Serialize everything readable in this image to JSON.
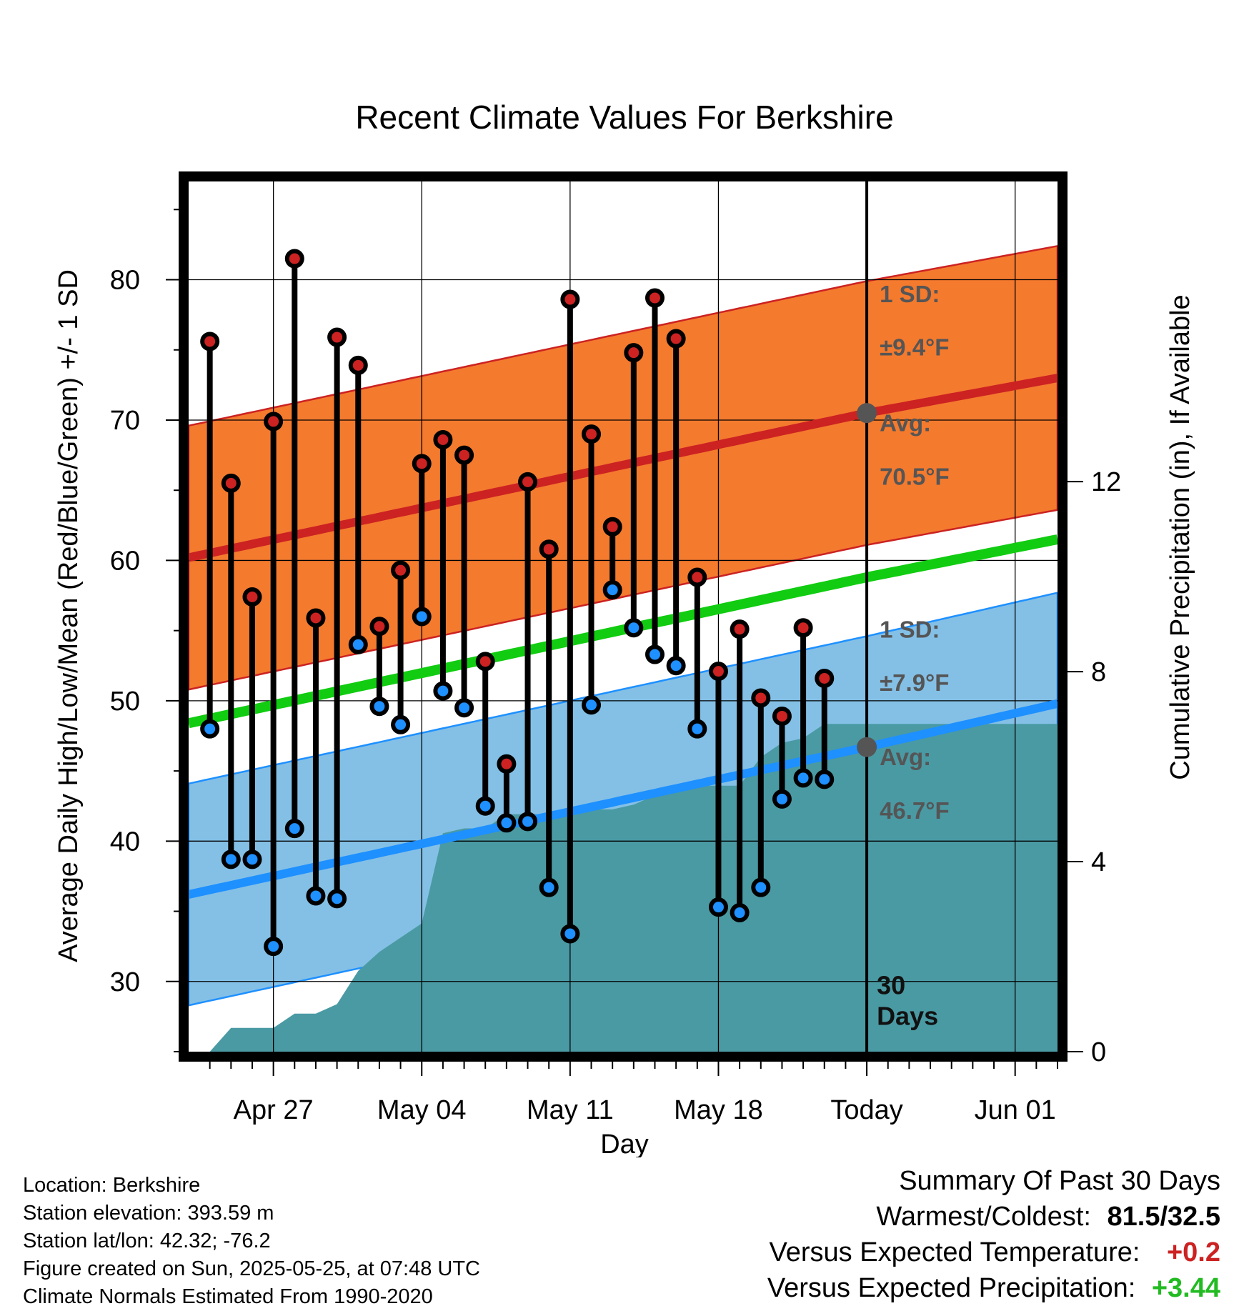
{
  "chart_data": {
    "type": "line",
    "title": "Recent Climate Values For Berkshire",
    "xlabel": "Day",
    "ylabel": "Average Daily High/Low/Mean (Red/Blue/Green) +/- 1 SD",
    "y2label": "Cumulative Precipitation (in), If Available",
    "ylim": [
      25,
      87
    ],
    "y2lim": [
      0,
      18.32
    ],
    "yticks": [
      30,
      40,
      50,
      60,
      70,
      80
    ],
    "y2ticks": [
      0,
      4,
      8,
      12
    ],
    "xlim": [
      "2025-04-23",
      "2025-06-03"
    ],
    "xticks": [
      {
        "date": "2025-04-27",
        "label": "Apr 27"
      },
      {
        "date": "2025-05-04",
        "label": "May 04"
      },
      {
        "date": "2025-05-11",
        "label": "May 11"
      },
      {
        "date": "2025-05-18",
        "label": "May 18"
      },
      {
        "date": "2025-05-25",
        "label": "Today"
      },
      {
        "date": "2025-06-01",
        "label": "Jun 01"
      }
    ],
    "today": "2025-05-25",
    "period_label": [
      "30",
      "Days"
    ],
    "grid": true,
    "colors": {
      "high": "#cc2222",
      "high_band": "#f47a2e",
      "low": "#1e90ff",
      "low_band": "#84c0e6",
      "mean": "#11cc11",
      "precip": "#4a9aa4"
    },
    "normals": {
      "dates": [
        "2025-04-23",
        "2025-05-25",
        "2025-06-03"
      ],
      "high_avg": [
        60.2,
        70.5,
        73.0
      ],
      "high_sd": 9.4,
      "low_avg": [
        36.2,
        46.7,
        49.8
      ],
      "low_sd": 7.9,
      "mean_avg": [
        48.4,
        58.8,
        61.5
      ]
    },
    "annotations": {
      "high_sd_label": "1 SD:",
      "high_sd_value": "±9.4°F",
      "high_avg_label": "Avg:",
      "high_avg_value": "70.5°F",
      "low_sd_label": "1 SD:",
      "low_sd_value": "±7.9°F",
      "low_avg_label": "Avg:",
      "low_avg_value": "46.7°F"
    },
    "series": [
      {
        "name": "High",
        "dates": [
          "2025-04-24",
          "2025-04-25",
          "2025-04-26",
          "2025-04-27",
          "2025-04-28",
          "2025-04-29",
          "2025-04-30",
          "2025-05-01",
          "2025-05-02",
          "2025-05-03",
          "2025-05-04",
          "2025-05-05",
          "2025-05-06",
          "2025-05-07",
          "2025-05-08",
          "2025-05-09",
          "2025-05-10",
          "2025-05-11",
          "2025-05-12",
          "2025-05-13",
          "2025-05-14",
          "2025-05-15",
          "2025-05-16",
          "2025-05-17",
          "2025-05-18",
          "2025-05-19",
          "2025-05-20",
          "2025-05-21",
          "2025-05-22",
          "2025-05-23"
        ],
        "values": [
          75.6,
          65.5,
          57.4,
          69.9,
          81.5,
          55.9,
          75.9,
          73.9,
          55.3,
          59.3,
          66.9,
          68.6,
          67.5,
          52.8,
          45.5,
          65.6,
          60.8,
          78.6,
          69.0,
          62.4,
          74.8,
          78.7,
          75.8,
          58.8,
          52.1,
          55.1,
          50.2,
          48.9,
          55.2,
          51.6
        ]
      },
      {
        "name": "Low",
        "dates": [
          "2025-04-24",
          "2025-04-25",
          "2025-04-26",
          "2025-04-27",
          "2025-04-28",
          "2025-04-29",
          "2025-04-30",
          "2025-05-01",
          "2025-05-02",
          "2025-05-03",
          "2025-05-04",
          "2025-05-05",
          "2025-05-06",
          "2025-05-07",
          "2025-05-08",
          "2025-05-09",
          "2025-05-10",
          "2025-05-11",
          "2025-05-12",
          "2025-05-13",
          "2025-05-14",
          "2025-05-15",
          "2025-05-16",
          "2025-05-17",
          "2025-05-18",
          "2025-05-19",
          "2025-05-20",
          "2025-05-21",
          "2025-05-22",
          "2025-05-23"
        ],
        "values": [
          48.0,
          38.7,
          38.7,
          32.5,
          40.9,
          36.1,
          35.9,
          54.0,
          49.6,
          48.3,
          56.0,
          50.7,
          49.5,
          42.5,
          41.3,
          41.4,
          36.7,
          33.4,
          49.7,
          57.9,
          55.2,
          53.3,
          52.5,
          48.0,
          35.3,
          34.9,
          36.7,
          43.0,
          44.5,
          44.4
        ]
      },
      {
        "name": "Cumulative Precipitation",
        "dates": [
          "2025-04-24",
          "2025-04-25",
          "2025-04-26",
          "2025-04-27",
          "2025-04-28",
          "2025-04-29",
          "2025-04-30",
          "2025-05-01",
          "2025-05-02",
          "2025-05-03",
          "2025-05-04",
          "2025-05-05",
          "2025-05-06",
          "2025-05-07",
          "2025-05-08",
          "2025-05-09",
          "2025-05-10",
          "2025-05-11",
          "2025-05-12",
          "2025-05-13",
          "2025-05-14",
          "2025-05-15",
          "2025-05-16",
          "2025-05-17",
          "2025-05-18",
          "2025-05-19",
          "2025-05-20",
          "2025-05-21",
          "2025-05-22",
          "2025-05-23",
          "2025-05-24",
          "2025-05-25",
          "2025-06-03"
        ],
        "values": [
          0.0,
          0.5,
          0.5,
          0.5,
          0.8,
          0.8,
          1.0,
          1.7,
          2.1,
          2.4,
          2.7,
          4.6,
          4.7,
          4.7,
          5.0,
          5.0,
          5.0,
          5.0,
          5.1,
          5.1,
          5.2,
          5.4,
          5.6,
          5.6,
          5.6,
          5.6,
          6.2,
          6.5,
          6.6,
          6.9,
          6.9,
          6.9,
          6.9
        ]
      }
    ]
  },
  "info": {
    "location": "Location: Berkshire",
    "elevation": "Station elevation: 393.59 m",
    "latlon": "Station lat/lon: 42.32; -76.2",
    "created": "Figure created on Sun, 2025-05-25, at 07:48 UTC",
    "normals": "Climate Normals Estimated From 1990-2020"
  },
  "summary": {
    "title": "Summary Of Past 30 Days",
    "warmest_label": "Warmest/Coldest:",
    "warmest_value": "81.5/32.5",
    "temp_label": "Versus Expected Temperature:",
    "temp_value": "+0.2",
    "temp_color": "#cc2222",
    "precip_label": "Versus Expected Precipitation:",
    "precip_value": "+3.44",
    "precip_color": "#22bb22"
  }
}
